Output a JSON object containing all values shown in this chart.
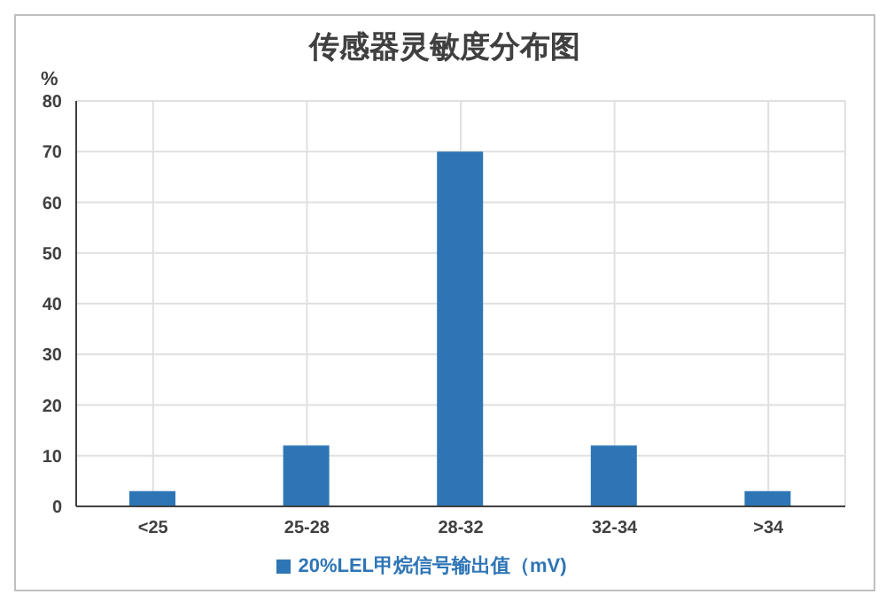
{
  "chart_data": {
    "type": "bar",
    "title": "传感器灵敏度分布图",
    "ylabel": "%",
    "categories": [
      "<25",
      "25-28",
      "28-32",
      "32-34",
      ">34"
    ],
    "series": [
      {
        "name": "20%LEL甲烷信号输出值（mV)",
        "color": "#2e75b6",
        "values": [
          3,
          12,
          70,
          12,
          3
        ]
      }
    ],
    "ylim": [
      0,
      80
    ],
    "yticks": [
      0,
      10,
      20,
      30,
      40,
      50,
      60,
      70,
      80
    ],
    "grid": true,
    "legend": "bottom"
  }
}
